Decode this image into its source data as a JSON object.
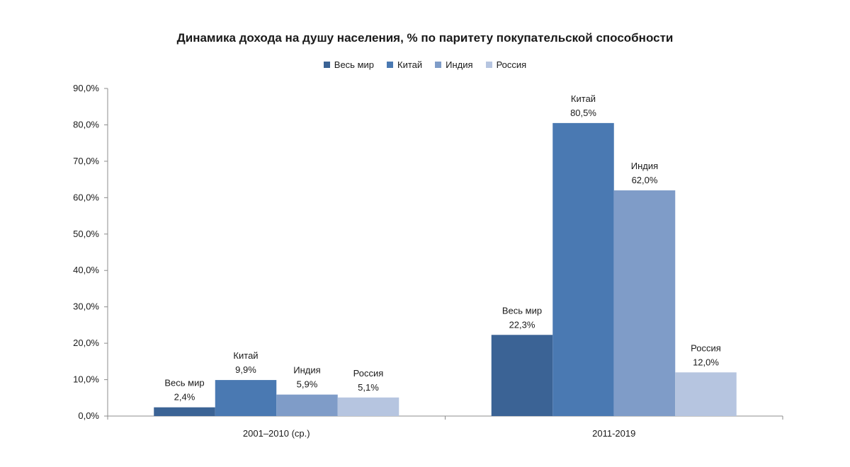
{
  "chart_data": {
    "type": "bar",
    "title": "Динамика дохода на душу населения, % по паритету покупательской способности",
    "categories": [
      "2001–2010 (ср.)",
      "2011-2019"
    ],
    "series": [
      {
        "name": "Весь мир",
        "values": [
          2.4,
          22.3
        ],
        "labels": [
          "2,4%",
          "22,3%"
        ],
        "color": "#3b6395"
      },
      {
        "name": "Китай",
        "values": [
          9.9,
          80.5
        ],
        "labels": [
          "9,9%",
          "80,5%"
        ],
        "color": "#4a79b2"
      },
      {
        "name": "Индия",
        "values": [
          5.9,
          62.0
        ],
        "labels": [
          "5,9%",
          "62,0%"
        ],
        "color": "#7f9cc8"
      },
      {
        "name": "Россия",
        "values": [
          5.1,
          12.0
        ],
        "labels": [
          "5,1%",
          "12,0%"
        ],
        "color": "#b6c5e0"
      }
    ],
    "ylim": [
      0,
      90
    ],
    "yticks": [
      "0,0%",
      "10,0%",
      "20,0%",
      "30,0%",
      "40,0%",
      "50,0%",
      "60,0%",
      "70,0%",
      "80,0%",
      "90,0%"
    ],
    "legend_position": "top",
    "grid": false
  }
}
